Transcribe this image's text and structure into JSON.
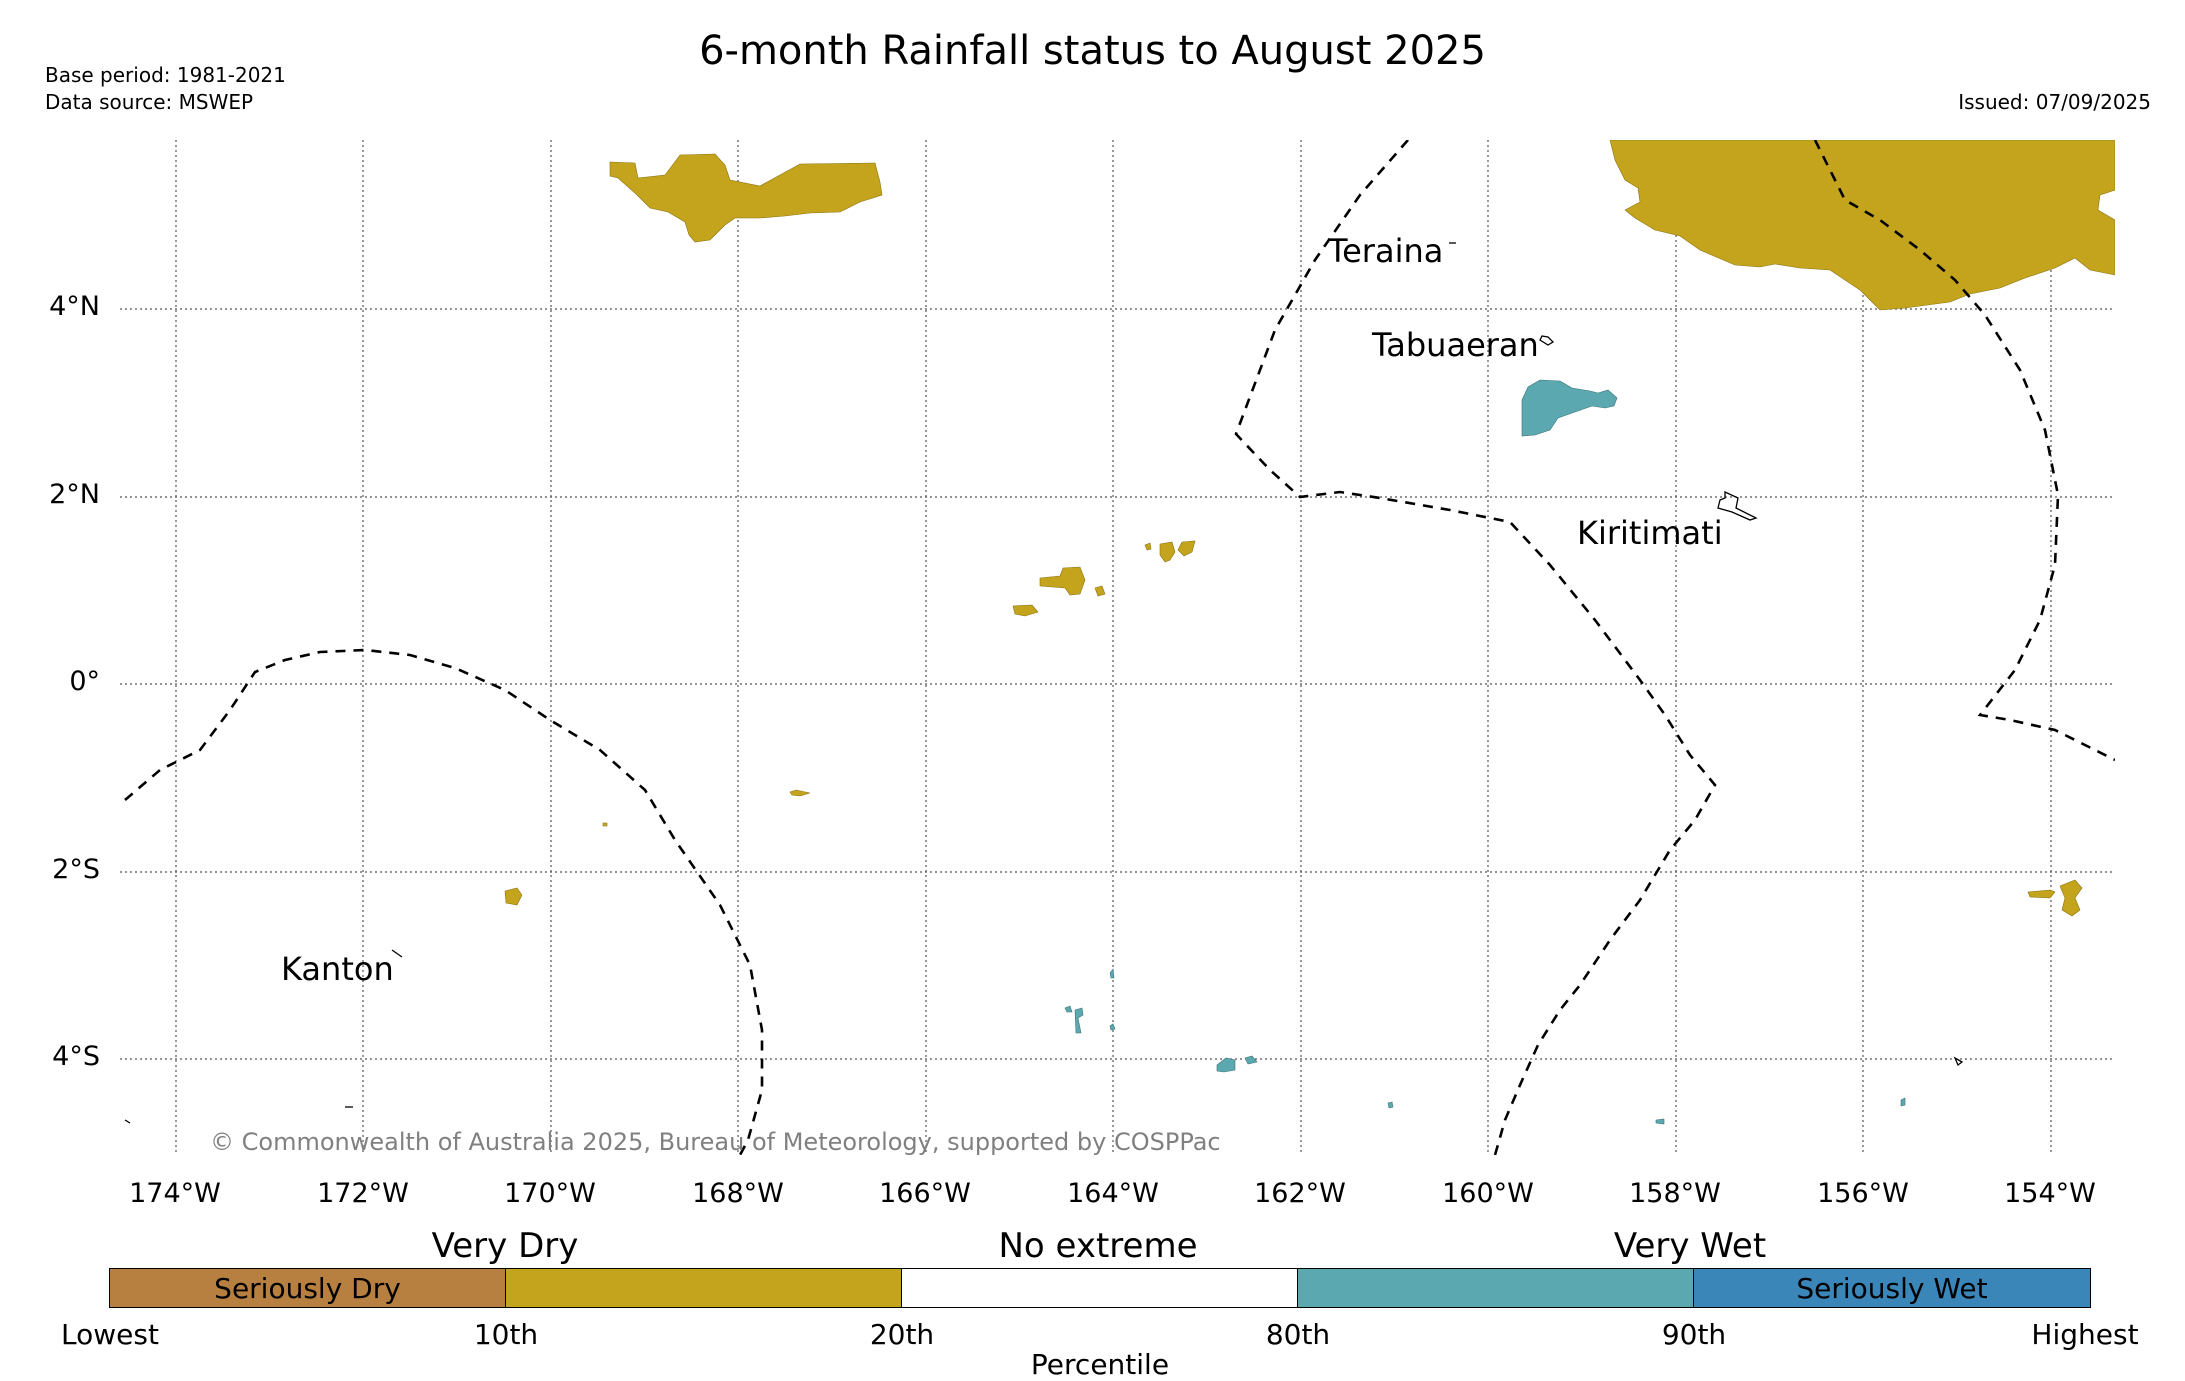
{
  "header": {
    "title": "6-month Rainfall status to August 2025",
    "base_period": "Base period: 1981-2021",
    "data_source": "Data source: MSWEP",
    "issued": "Issued: 07/09/2025"
  },
  "map": {
    "lat_labels": [
      "4°N",
      "2°N",
      "0°",
      "2°S",
      "4°S"
    ],
    "lon_labels": [
      "174°W",
      "172°W",
      "170°W",
      "168°W",
      "166°W",
      "164°W",
      "162°W",
      "160°W",
      "158°W",
      "156°W",
      "154°W"
    ],
    "places": {
      "teraina": "Teraina",
      "tabuaeran": "Tabuaeran",
      "kiritimati": "Kiritimati",
      "kanton": "Kanton"
    },
    "copyright": "© Commonwealth of Australia 2025, Bureau of Meteorology, supported by COSPPac",
    "colors": {
      "very_dry": "#c4a41c",
      "very_wet": "#5ba8b0",
      "grid": "#555555"
    }
  },
  "legend": {
    "categories": {
      "very_dry": "Very Dry",
      "no_extreme": "No extreme",
      "very_wet": "Very Wet"
    },
    "segments": [
      {
        "label": "Seriously Dry",
        "color": "#b88040"
      },
      {
        "label": "",
        "color": "#c4a41c"
      },
      {
        "label": "",
        "color": "#ffffff"
      },
      {
        "label": "",
        "color": "#5ba8b0"
      },
      {
        "label": "Seriously Wet",
        "color": "#3a86b8"
      }
    ],
    "percentiles": [
      "Lowest",
      "10th",
      "20th",
      "80th",
      "90th",
      "Highest"
    ],
    "axis_label": "Percentile"
  }
}
